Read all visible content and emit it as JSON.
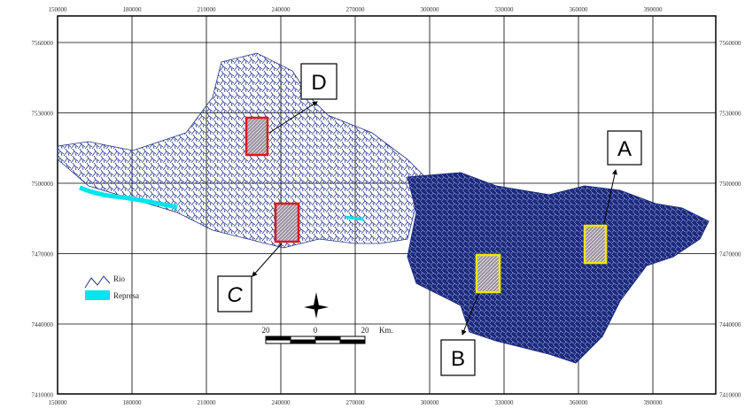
{
  "eastings": [
    "150000",
    "180000",
    "210000",
    "240000",
    "270000",
    "300000",
    "330000",
    "360000",
    "390000"
  ],
  "northings": [
    "7560000",
    "7530000",
    "7500000",
    "7470000",
    "7440000",
    "7410000"
  ],
  "sites": {
    "a": "A",
    "b": "B",
    "c": "C",
    "d": "D"
  },
  "legend": {
    "river": "Rio",
    "reservoir": "Represa"
  },
  "scale_bar": {
    "left": "20",
    "middle": "0",
    "right": "20",
    "unit": "Km."
  }
}
